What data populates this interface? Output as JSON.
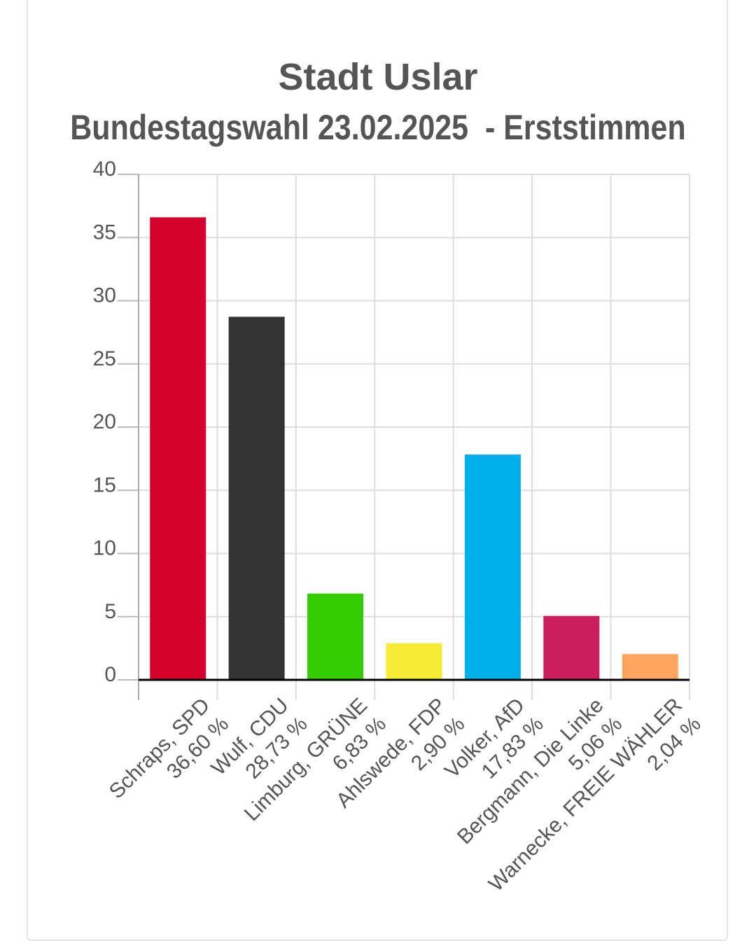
{
  "chart_data": {
    "type": "bar",
    "title": "Stadt Uslar",
    "subtitle": "Bundestagswahl 23.02.2025  - Erststimmen",
    "ylim": [
      0,
      40
    ],
    "yticks": [
      0,
      5,
      10,
      15,
      20,
      25,
      30,
      35,
      40
    ],
    "grid": true,
    "categories": [
      {
        "name": "Schraps, SPD",
        "value_label": "36,60 %"
      },
      {
        "name": "Wulf, CDU",
        "value_label": "28,73 %"
      },
      {
        "name": "Limburg, GRÜNE",
        "value_label": "6,83 %"
      },
      {
        "name": "Ahlswede, FDP",
        "value_label": "2,90 %"
      },
      {
        "name": "Volker, AfD",
        "value_label": "17,83 %"
      },
      {
        "name": "Bergmann, Die Linke",
        "value_label": "5,06 %"
      },
      {
        "name": "Warnecke, FREIE WÄHLER",
        "value_label": "2,04 %"
      }
    ],
    "values": [
      36.6,
      28.73,
      6.83,
      2.9,
      17.83,
      5.06,
      2.04
    ],
    "colors": [
      "#d5002b",
      "#333333",
      "#33cc00",
      "#f7eb35",
      "#00aeea",
      "#cc1e5c",
      "#ffa45c"
    ]
  }
}
